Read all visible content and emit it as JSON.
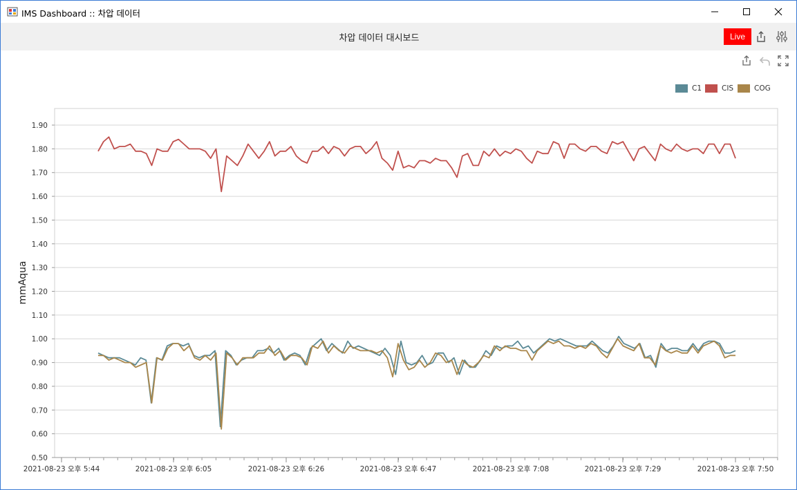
{
  "window": {
    "title": "IMS Dashboard :: 차압 데이터"
  },
  "header": {
    "title": "차압 데이터 대시보드",
    "live_label": "Live"
  },
  "toolbar_icons": [
    "share-icon",
    "undo-icon",
    "fullscreen-icon"
  ],
  "header_icons": [
    "share-icon",
    "sliders-icon"
  ],
  "colors": {
    "C1": "#5b8a96",
    "CIS": "#c0504d",
    "COG": "#a9864a",
    "live": "#ff0000"
  },
  "chart_data": {
    "type": "line",
    "ylabel": "mmAqua",
    "ylim": [
      0.5,
      1.9
    ],
    "yticks": [
      "0.50",
      "0.60",
      "0.70",
      "0.80",
      "0.90",
      "1.00",
      "1.10",
      "1.20",
      "1.30",
      "1.40",
      "1.50",
      "1.60",
      "1.70",
      "1.80",
      "1.90"
    ],
    "xticks": [
      "2021-08-23 오후 5:44",
      "2021-08-23 오후 6:05",
      "2021-08-23 오후 6:26",
      "2021-08-23 오후 6:47",
      "2021-08-23 오후 7:08",
      "2021-08-23 오후 7:29",
      "2021-08-23 오후 7:50"
    ],
    "legend": [
      "C1",
      "CIS",
      "COG"
    ],
    "legend_position": "top-right",
    "grid": true,
    "series": [
      {
        "name": "C1",
        "values": [
          0.94,
          0.93,
          0.92,
          0.92,
          0.92,
          0.91,
          0.9,
          0.89,
          0.92,
          0.91,
          0.73,
          0.92,
          0.91,
          0.97,
          0.98,
          0.98,
          0.97,
          0.98,
          0.93,
          0.92,
          0.93,
          0.93,
          0.95,
          0.63,
          0.95,
          0.93,
          0.89,
          0.91,
          0.92,
          0.92,
          0.95,
          0.95,
          0.96,
          0.94,
          0.96,
          0.91,
          0.93,
          0.94,
          0.93,
          0.89,
          0.96,
          0.98,
          1.0,
          0.95,
          0.98,
          0.96,
          0.94,
          0.99,
          0.96,
          0.97,
          0.96,
          0.95,
          0.94,
          0.93,
          0.96,
          0.93,
          0.85,
          0.99,
          0.9,
          0.89,
          0.9,
          0.93,
          0.89,
          0.9,
          0.94,
          0.94,
          0.9,
          0.92,
          0.85,
          0.91,
          0.88,
          0.88,
          0.91,
          0.95,
          0.93,
          0.97,
          0.96,
          0.97,
          0.97,
          0.99,
          0.96,
          0.97,
          0.94,
          0.96,
          0.98,
          1.0,
          0.99,
          1.0,
          0.99,
          0.98,
          0.97,
          0.97,
          0.97,
          0.99,
          0.97,
          0.95,
          0.94,
          0.97,
          1.01,
          0.98,
          0.97,
          0.96,
          0.98,
          0.92,
          0.93,
          0.88,
          0.98,
          0.95,
          0.96,
          0.96,
          0.95,
          0.95,
          0.98,
          0.95,
          0.98,
          0.99,
          0.99,
          0.98,
          0.94,
          0.94,
          0.95
        ]
      },
      {
        "name": "CIS",
        "values": [
          1.79,
          1.83,
          1.85,
          1.8,
          1.81,
          1.81,
          1.82,
          1.79,
          1.79,
          1.78,
          1.73,
          1.8,
          1.79,
          1.79,
          1.83,
          1.84,
          1.82,
          1.8,
          1.8,
          1.8,
          1.79,
          1.76,
          1.8,
          1.62,
          1.77,
          1.75,
          1.73,
          1.77,
          1.82,
          1.79,
          1.76,
          1.79,
          1.83,
          1.77,
          1.79,
          1.79,
          1.81,
          1.77,
          1.75,
          1.74,
          1.79,
          1.79,
          1.81,
          1.78,
          1.81,
          1.8,
          1.77,
          1.8,
          1.81,
          1.81,
          1.78,
          1.8,
          1.83,
          1.76,
          1.74,
          1.71,
          1.79,
          1.72,
          1.73,
          1.72,
          1.75,
          1.75,
          1.74,
          1.76,
          1.75,
          1.75,
          1.72,
          1.68,
          1.77,
          1.78,
          1.73,
          1.73,
          1.79,
          1.77,
          1.8,
          1.77,
          1.79,
          1.78,
          1.8,
          1.79,
          1.76,
          1.74,
          1.79,
          1.78,
          1.78,
          1.83,
          1.82,
          1.76,
          1.82,
          1.82,
          1.8,
          1.79,
          1.81,
          1.81,
          1.79,
          1.78,
          1.83,
          1.82,
          1.83,
          1.79,
          1.75,
          1.8,
          1.81,
          1.78,
          1.75,
          1.82,
          1.8,
          1.79,
          1.82,
          1.8,
          1.79,
          1.8,
          1.8,
          1.78,
          1.82,
          1.82,
          1.78,
          1.82,
          1.82,
          1.76
        ]
      },
      {
        "name": "COG",
        "values": [
          0.93,
          0.93,
          0.91,
          0.92,
          0.91,
          0.9,
          0.9,
          0.88,
          0.89,
          0.9,
          0.73,
          0.92,
          0.91,
          0.96,
          0.98,
          0.98,
          0.95,
          0.97,
          0.92,
          0.91,
          0.93,
          0.91,
          0.94,
          0.62,
          0.94,
          0.92,
          0.89,
          0.92,
          0.92,
          0.92,
          0.94,
          0.94,
          0.97,
          0.93,
          0.95,
          0.91,
          0.93,
          0.93,
          0.92,
          0.89,
          0.97,
          0.96,
          0.99,
          0.94,
          0.97,
          0.95,
          0.94,
          0.97,
          0.96,
          0.95,
          0.95,
          0.95,
          0.94,
          0.95,
          0.92,
          0.84,
          0.98,
          0.91,
          0.87,
          0.88,
          0.91,
          0.88,
          0.9,
          0.94,
          0.93,
          0.9,
          0.91,
          0.85,
          0.91,
          0.89,
          0.88,
          0.9,
          0.93,
          0.92,
          0.97,
          0.95,
          0.97,
          0.96,
          0.96,
          0.95,
          0.95,
          0.91,
          0.95,
          0.97,
          0.99,
          0.98,
          0.99,
          0.97,
          0.97,
          0.96,
          0.97,
          0.96,
          0.98,
          0.97,
          0.94,
          0.92,
          0.96,
          1.0,
          0.97,
          0.96,
          0.95,
          0.98,
          0.92,
          0.92,
          0.89,
          0.97,
          0.95,
          0.94,
          0.95,
          0.94,
          0.94,
          0.97,
          0.94,
          0.97,
          0.98,
          0.99,
          0.97,
          0.92,
          0.93,
          0.93
        ]
      }
    ]
  }
}
